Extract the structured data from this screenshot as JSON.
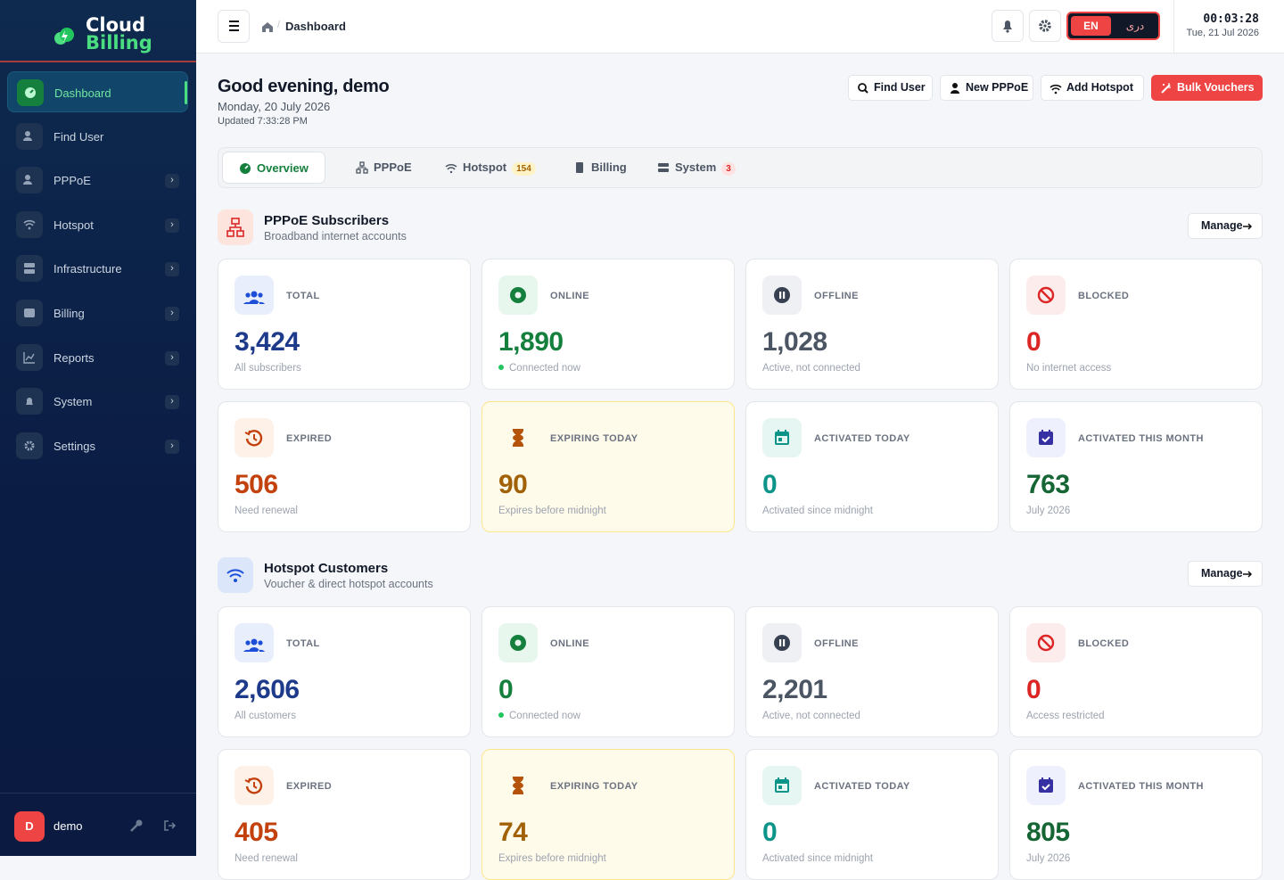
{
  "sidebar": {
    "brand": [
      "Cloud",
      "Billing"
    ],
    "nav": [
      {
        "label": "Dashboard"
      },
      {
        "label": "Find User"
      },
      {
        "label": "PPPoE"
      },
      {
        "label": "Hotspot"
      },
      {
        "label": "Infrastructure"
      },
      {
        "label": "Billing"
      },
      {
        "label": "Reports"
      },
      {
        "label": "System"
      },
      {
        "label": "Settings"
      }
    ],
    "user": {
      "initial": "D",
      "name": "demo"
    }
  },
  "topbar": {
    "breadcrumb": "Dashboard",
    "lang": [
      "EN",
      "دری"
    ],
    "clock": "00:03:28",
    "date": "Tue, 21 Jul 2026"
  },
  "header": {
    "greeting": "Good evening, demo",
    "date": "Monday, 20 July 2026",
    "updated": "Updated 7:33:28 PM",
    "actions": [
      "Find User",
      "New PPPoE",
      "Add Hotspot",
      "Bulk Vouchers"
    ]
  },
  "tabs": [
    {
      "label": "Overview"
    },
    {
      "label": "PPPoE"
    },
    {
      "label": "Hotspot",
      "badge": 154
    },
    {
      "label": "Billing"
    },
    {
      "label": "System",
      "badge": 3
    }
  ],
  "sections": [
    {
      "title": "PPPoE Subscribers",
      "subtitle": "Broadband internet accounts",
      "manage": "Manage",
      "cards": [
        {
          "label": "TOTAL",
          "value": "3,424",
          "note": "All subscribers"
        },
        {
          "label": "ONLINE",
          "value": "1,890",
          "note": "Connected now"
        },
        {
          "label": "OFFLINE",
          "value": "1,028",
          "note": "Active, not connected"
        },
        {
          "label": "BLOCKED",
          "value": "0",
          "note": "No internet access"
        },
        {
          "label": "EXPIRED",
          "value": "506",
          "note": "Need renewal"
        },
        {
          "label": "EXPIRING TODAY",
          "value": "90",
          "note": "Expires before midnight"
        },
        {
          "label": "ACTIVATED TODAY",
          "value": "0",
          "note": "Activated since midnight"
        },
        {
          "label": "ACTIVATED THIS MONTH",
          "value": "763",
          "note": "July 2026"
        }
      ]
    },
    {
      "title": "Hotspot Customers",
      "subtitle": "Voucher & direct hotspot accounts",
      "manage": "Manage",
      "cards": [
        {
          "label": "TOTAL",
          "value": "2,606",
          "note": "All customers"
        },
        {
          "label": "ONLINE",
          "value": "0",
          "note": "Connected now"
        },
        {
          "label": "OFFLINE",
          "value": "2,201",
          "note": "Active, not connected"
        },
        {
          "label": "BLOCKED",
          "value": "0",
          "note": "Access restricted"
        },
        {
          "label": "EXPIRED",
          "value": "405",
          "note": "Need renewal"
        },
        {
          "label": "EXPIRING TODAY",
          "value": "74",
          "note": "Expires before midnight"
        },
        {
          "label": "ACTIVATED TODAY",
          "value": "0",
          "note": "Activated since midnight"
        },
        {
          "label": "ACTIVATED THIS MONTH",
          "value": "805",
          "note": "July 2026"
        }
      ]
    }
  ]
}
